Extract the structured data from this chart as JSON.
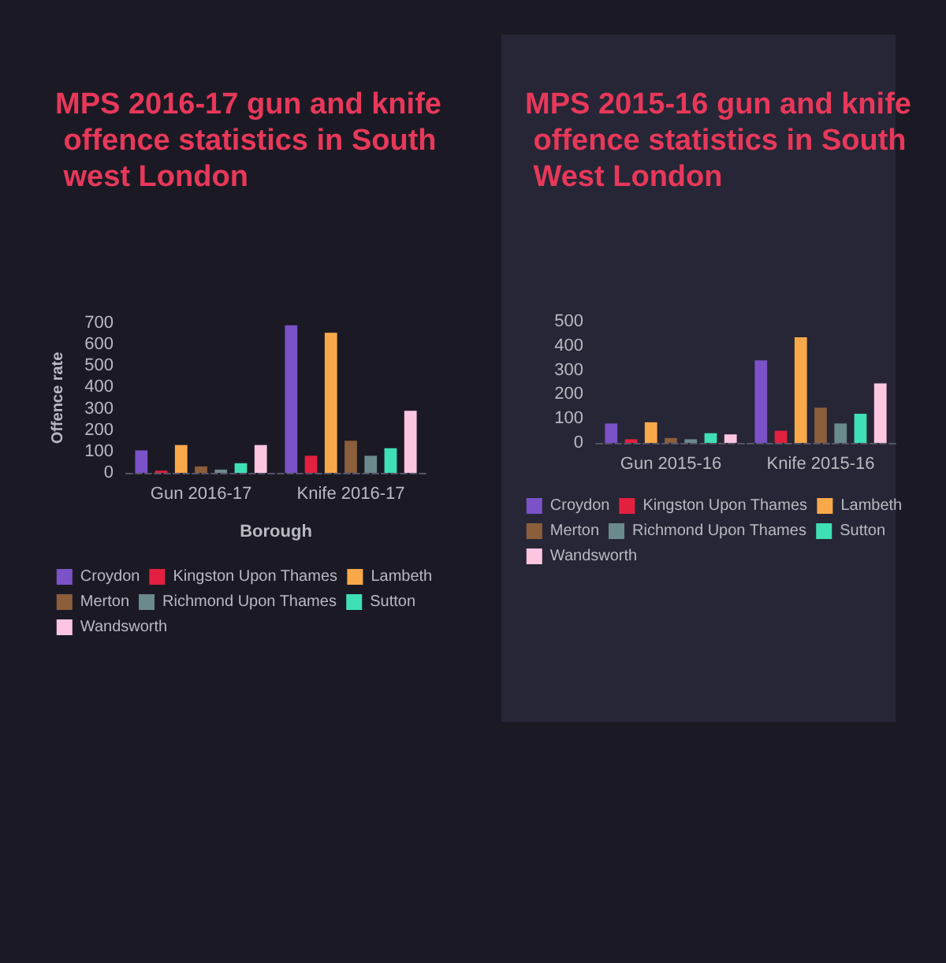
{
  "chart_data": [
    {
      "type": "bar",
      "title": "MPS 2016-17 gun and knife offence statistics in South west London",
      "xlabel": "Borough",
      "ylabel": "Offence rate",
      "categories": [
        "Gun 2016-17",
        "Knife 2016-17"
      ],
      "ylim": [
        0,
        700
      ],
      "yticks": [
        0,
        100,
        200,
        300,
        400,
        500,
        600,
        700
      ],
      "grid": false,
      "legend": "bottom",
      "series": [
        {
          "name": "Croydon",
          "color": "#7b52c7",
          "values": [
            105,
            690
          ]
        },
        {
          "name": "Kingston Upon Thames",
          "color": "#e3203f",
          "values": [
            10,
            80
          ]
        },
        {
          "name": "Lambeth",
          "color": "#f9a94a",
          "values": [
            130,
            655
          ]
        },
        {
          "name": "Merton",
          "color": "#8b5e3c",
          "values": [
            30,
            150
          ]
        },
        {
          "name": "Richmond Upon Thames",
          "color": "#6b8a8e",
          "values": [
            15,
            80
          ]
        },
        {
          "name": "Sutton",
          "color": "#3fe0b5",
          "values": [
            45,
            115
          ]
        },
        {
          "name": "Wandsworth",
          "color": "#fcc5e0",
          "values": [
            130,
            290
          ]
        }
      ]
    },
    {
      "type": "bar",
      "title": "MPS 2015-16 gun and knife offence statistics in South West London",
      "categories": [
        "Gun 2015-16",
        "Knife 2015-16"
      ],
      "ylim": [
        0,
        500
      ],
      "yticks": [
        0,
        100,
        200,
        300,
        400,
        500
      ],
      "grid": false,
      "legend": "bottom",
      "series": [
        {
          "name": "Croydon",
          "color": "#7b52c7",
          "values": [
            80,
            340
          ]
        },
        {
          "name": "Kingston Upon Thames",
          "color": "#e3203f",
          "values": [
            15,
            50
          ]
        },
        {
          "name": "Lambeth",
          "color": "#f9a94a",
          "values": [
            85,
            435
          ]
        },
        {
          "name": "Merton",
          "color": "#8b5e3c",
          "values": [
            20,
            145
          ]
        },
        {
          "name": "Richmond Upon Thames",
          "color": "#6b8a8e",
          "values": [
            15,
            80
          ]
        },
        {
          "name": "Sutton",
          "color": "#3fe0b5",
          "values": [
            40,
            120
          ]
        },
        {
          "name": "Wandsworth",
          "color": "#fcc5e0",
          "values": [
            35,
            245
          ]
        }
      ]
    }
  ]
}
